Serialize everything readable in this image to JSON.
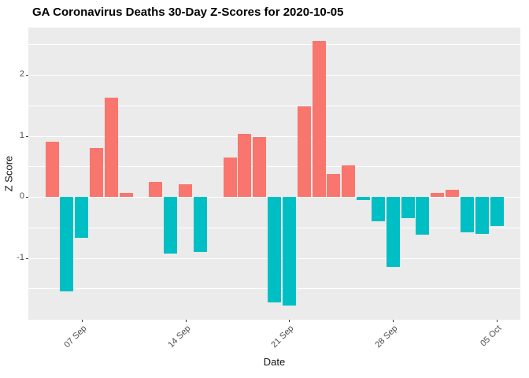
{
  "chart_data": {
    "type": "bar",
    "title": "GA Coronavirus Deaths 30-Day Z-Scores for 2020-10-05",
    "xlabel": "Date",
    "ylabel": "Z Score",
    "x": [
      "2020-09-05",
      "2020-09-06",
      "2020-09-07",
      "2020-09-08",
      "2020-09-09",
      "2020-09-10",
      "2020-09-11",
      "2020-09-12",
      "2020-09-13",
      "2020-09-14",
      "2020-09-15",
      "2020-09-16",
      "2020-09-17",
      "2020-09-18",
      "2020-09-19",
      "2020-09-20",
      "2020-09-21",
      "2020-09-22",
      "2020-09-23",
      "2020-09-24",
      "2020-09-25",
      "2020-09-26",
      "2020-09-27",
      "2020-09-28",
      "2020-09-29",
      "2020-09-30",
      "2020-10-01",
      "2020-10-02",
      "2020-10-03",
      "2020-10-04",
      "2020-10-05"
    ],
    "values": [
      0.9,
      -1.55,
      -0.67,
      0.8,
      1.62,
      0.07,
      0,
      0.25,
      -0.93,
      0.21,
      -0.9,
      0,
      0.65,
      1.03,
      0.98,
      -1.73,
      -1.78,
      1.48,
      2.55,
      0.38,
      0.52,
      -0.05,
      -0.4,
      -1.15,
      -0.35,
      -0.62,
      0.06,
      0.12,
      -0.58,
      -0.6,
      -0.48
    ],
    "x_tick_labels": [
      "07 Sep",
      "14 Sep",
      "21 Sep",
      "28 Sep",
      "05 Oct"
    ],
    "x_tick_indices": [
      2,
      9,
      16,
      23,
      30
    ],
    "y_ticks": [
      -1,
      0,
      1,
      2
    ],
    "y_minor_ticks": [
      -1.5,
      -0.5,
      0.5,
      1.5,
      2.5
    ],
    "ylim": [
      -2.0,
      2.77
    ],
    "grid": true,
    "legend": "none",
    "colors": {
      "positive": "#F8766D",
      "negative": "#00BFC4",
      "panel_bg": "#EBEBEB",
      "grid": "#FFFFFF",
      "tick_text": "#4D4D4D",
      "title_text": "#000000"
    }
  }
}
